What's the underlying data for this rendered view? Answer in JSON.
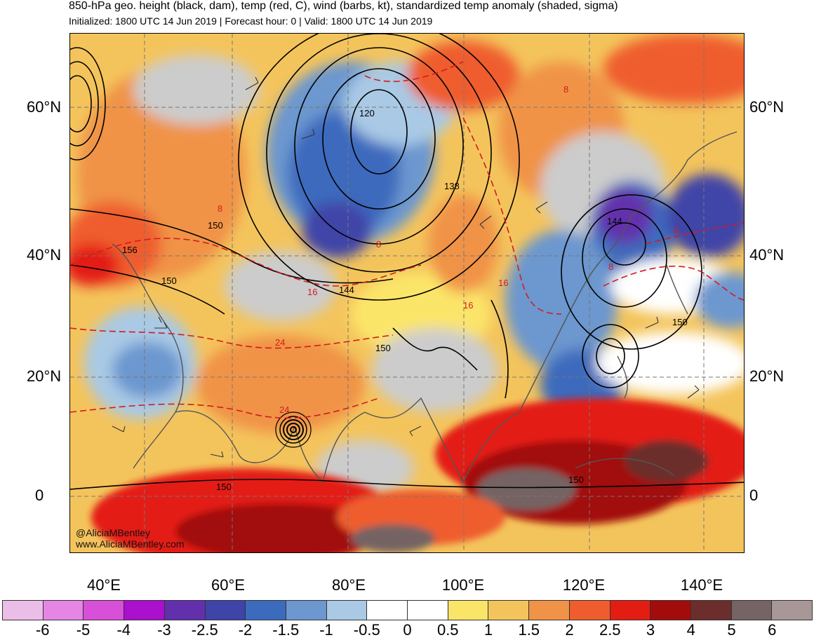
{
  "header": {
    "title": "850-hPa geo. height (black, dam), temp (red, C), wind (barbs, kt), standardized temp anomaly (shaded, sigma)",
    "subtitle": "Initialized: 1800 UTC 14 Jun 2019 | Forecast hour: 0 | Valid: 1800 UTC 14 Jun 2019"
  },
  "map": {
    "lat_labels": [
      "60°N",
      "40°N",
      "20°N",
      "0"
    ],
    "lon_labels": [
      "40°E",
      "60°E",
      "80°E",
      "100°E",
      "120°E",
      "140°E"
    ],
    "height_contour_labels": [
      "120",
      "138",
      "144",
      "150",
      "156",
      "150",
      "144",
      "150",
      "150",
      "150",
      "150"
    ],
    "temp_contour_labels": [
      "8",
      "8",
      "8",
      "16",
      "16",
      "16",
      "24",
      "24",
      "0",
      "8"
    ],
    "credits": [
      "@AliciaMBentley",
      "www.AliciaMBentley.com"
    ]
  },
  "colorbar": {
    "colors": [
      "#ebbee8",
      "#e586e5",
      "#d84fd8",
      "#aa10cd",
      "#6230ad",
      "#3f44a8",
      "#3c6bbd",
      "#6c97cf",
      "#a9c9e5",
      "#ffffff",
      "#ffffff",
      "#fbe569",
      "#f4c45c",
      "#f09347",
      "#ef5d2e",
      "#e41d12",
      "#a20d0c",
      "#6c2e2c",
      "#746463",
      "#a79897"
    ],
    "labels": [
      "-6",
      "-5",
      "-4",
      "-3",
      "-2.5",
      "-2",
      "-1.5",
      "-1",
      "-0.5",
      "0",
      "0.5",
      "1",
      "1.5",
      "2",
      "2.5",
      "3",
      "4",
      "5",
      "6"
    ]
  }
}
